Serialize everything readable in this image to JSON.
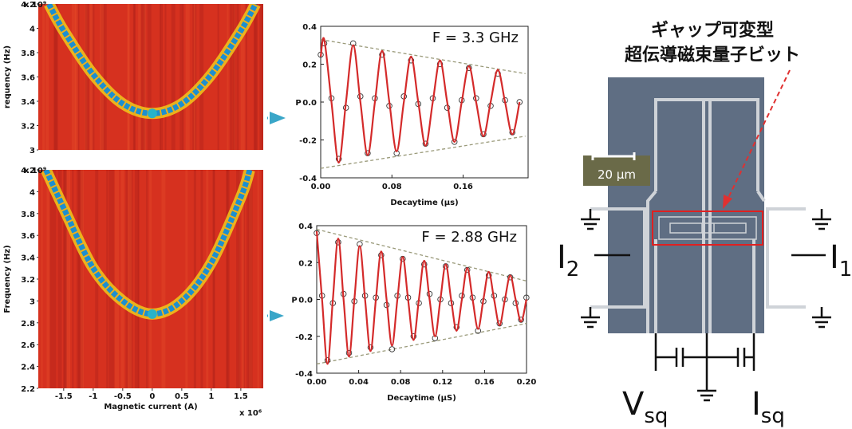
{
  "chart_data": [
    {
      "type": "heatmap",
      "y_label": "requency (Hz)",
      "y_multiplier": "x 10⁹",
      "color": "#d6311f",
      "line_color": "#1c8fd0",
      "glow_color": "#f2d21b",
      "x": [
        -1.75,
        -1.5,
        -1,
        -0.5,
        0,
        0.5,
        1,
        1.5,
        1.75
      ],
      "y": [
        4.2,
        3.98,
        3.62,
        3.38,
        3.3,
        3.38,
        3.62,
        3.98,
        4.2
      ],
      "marker": {
        "x": 0,
        "y": 3.3,
        "color": "#27b3c9"
      },
      "xlim": [
        -1.93,
        1.88
      ],
      "ylim": [
        3,
        4.2
      ],
      "yticks": [
        3,
        3.2,
        3.4,
        3.6,
        3.8,
        4,
        4.2
      ]
    },
    {
      "type": "heatmap",
      "y_label": "Frequency (Hz)",
      "y_multiplier": "x 10⁹",
      "x_label": "Magnetic current (A)",
      "x_multiplier": "x 10⁶",
      "color": "#d6311f",
      "line_color": "#1c8fd0",
      "glow_color": "#f2d21b",
      "x": [
        -1.8,
        -1.5,
        -1,
        -0.5,
        0,
        0.5,
        1,
        1.5,
        1.65
      ],
      "y": [
        4.2,
        3.85,
        3.3,
        3.0,
        2.88,
        3.0,
        3.35,
        3.95,
        4.2
      ],
      "marker": {
        "x": 0,
        "y": 2.88,
        "color": "#27b3c9"
      },
      "xlim": [
        -1.93,
        1.88
      ],
      "ylim": [
        2.2,
        4.2
      ],
      "xticks": [
        -1.5,
        -1,
        -0.5,
        0,
        0.5,
        1,
        1.5
      ],
      "yticks": [
        2.2,
        2.4,
        2.6,
        2.8,
        3,
        3.2,
        3.4,
        3.6,
        3.8,
        4,
        4.2
      ]
    },
    {
      "type": "line",
      "title": "F = 3.3 GHz",
      "x_label": "Decaytime (μs)",
      "y_label": "P",
      "xlim": [
        0,
        0.233
      ],
      "ylim": [
        -0.4,
        0.4
      ],
      "xticks": [
        {
          "value": 0,
          "label": "0.00"
        },
        0.08,
        0.16
      ],
      "yticks": [
        -0.4,
        -0.2,
        {
          "value": 0,
          "label": "0.0"
        },
        0.2,
        0.4
      ],
      "fit": {
        "color": "#d42a2a",
        "x": [
          0,
          0.004,
          0.0121,
          0.0203,
          0.0284,
          0.0365,
          0.0446,
          0.0528,
          0.0609,
          0.069,
          0.0771,
          0.0853,
          0.0934,
          0.1015,
          0.1096,
          0.1178,
          0.1259,
          0.134,
          0.1421,
          0.1503,
          0.1584,
          0.1665,
          0.1746,
          0.1828,
          0.1909,
          0.199,
          0.2071,
          0.2153,
          0.2234
        ],
        "y": [
          0.24,
          0.33,
          0,
          -0.32,
          0,
          0.3,
          0,
          -0.28,
          0,
          0.27,
          0,
          -0.26,
          0,
          0.24,
          0,
          -0.23,
          0,
          0.22,
          0,
          -0.21,
          0,
          0.19,
          0,
          -0.18,
          0,
          0.17,
          0,
          -0.17,
          0
        ]
      },
      "measured": {
        "color": "#333333",
        "x": [
          0,
          0.004,
          0.0121,
          0.0203,
          0.0284,
          0.0365,
          0.0446,
          0.0528,
          0.0609,
          0.069,
          0.0771,
          0.0853,
          0.0934,
          0.1015,
          0.1096,
          0.1178,
          0.1259,
          0.134,
          0.1421,
          0.1503,
          0.1584,
          0.1665,
          0.1746,
          0.1828,
          0.1909,
          0.199,
          0.2071,
          0.2153,
          0.2234
        ],
        "y": [
          0.25,
          0.31,
          0.02,
          -0.3,
          -0.03,
          0.31,
          0.03,
          -0.27,
          0.02,
          0.25,
          -0.02,
          -0.27,
          0.03,
          0.22,
          -0.01,
          -0.22,
          0.02,
          0.2,
          -0.03,
          -0.21,
          0.01,
          0.18,
          0.02,
          -0.17,
          -0.02,
          0.15,
          0.01,
          -0.16,
          0
        ]
      },
      "envelope": [
        {
          "color": "#9a9a7a",
          "x": [
            0,
            0.23
          ],
          "y": [
            0.33,
            0.15
          ]
        },
        {
          "color": "#9a9a7a",
          "x": [
            0,
            0.23
          ],
          "y": [
            -0.35,
            -0.18
          ]
        }
      ]
    },
    {
      "type": "line",
      "title": "F = 2.88 GHz",
      "x_label": "Decaytime (μS)",
      "y_label": "P",
      "xlim": [
        0,
        0.2
      ],
      "ylim": [
        -0.4,
        0.4
      ],
      "xticks": [
        {
          "value": 0,
          "label": "0.00"
        },
        0.04,
        0.08,
        0.12,
        0.16,
        {
          "value": 0.2,
          "label": "0.20"
        }
      ],
      "yticks": [
        -0.4,
        -0.2,
        {
          "value": 0,
          "label": "0.0"
        },
        0.2,
        0.4
      ],
      "fit": {
        "color": "#d42a2a",
        "x": [
          0,
          0.0051,
          0.0103,
          0.0154,
          0.0205,
          0.0256,
          0.0308,
          0.0359,
          0.041,
          0.0461,
          0.0513,
          0.0564,
          0.0615,
          0.0666,
          0.0718,
          0.0769,
          0.082,
          0.0871,
          0.0923,
          0.0974,
          0.1025,
          0.1076,
          0.1128,
          0.1179,
          0.123,
          0.1281,
          0.1333,
          0.1384,
          0.1435,
          0.1486,
          0.1538,
          0.1589,
          0.164,
          0.1691,
          0.1743,
          0.1794,
          0.1845,
          0.1896,
          0.1948,
          0.1999
        ],
        "y": [
          0.37,
          0,
          -0.35,
          0,
          0.33,
          0,
          -0.31,
          0,
          0.29,
          0,
          -0.28,
          0,
          0.26,
          0,
          -0.25,
          0,
          0.23,
          0,
          -0.22,
          0,
          0.21,
          0,
          -0.2,
          0,
          0.19,
          0,
          -0.17,
          0,
          0.17,
          0,
          -0.16,
          0,
          0.15,
          0,
          -0.14,
          0,
          0.13,
          0,
          -0.12,
          0
        ]
      },
      "measured": {
        "color": "#333333",
        "x": [
          0,
          0.0051,
          0.0103,
          0.0154,
          0.0205,
          0.0256,
          0.0308,
          0.0359,
          0.041,
          0.0461,
          0.0513,
          0.0564,
          0.0615,
          0.0666,
          0.0718,
          0.0769,
          0.082,
          0.0871,
          0.0923,
          0.0974,
          0.1025,
          0.1076,
          0.1128,
          0.1179,
          0.123,
          0.1281,
          0.1333,
          0.1384,
          0.1435,
          0.1486,
          0.1538,
          0.1589,
          0.164,
          0.1691,
          0.1743,
          0.1794,
          0.1845,
          0.1896,
          0.1948,
          0.1999
        ],
        "y": [
          0.36,
          0.02,
          -0.33,
          -0.02,
          0.31,
          0.03,
          -0.29,
          -0.01,
          0.3,
          0.02,
          -0.26,
          0.01,
          0.24,
          -0.03,
          -0.27,
          0.02,
          0.22,
          0.01,
          -0.2,
          -0.02,
          0.19,
          0.03,
          -0.21,
          0,
          0.18,
          -0.02,
          -0.15,
          0.02,
          0.16,
          0.01,
          -0.17,
          -0.01,
          0.13,
          0.02,
          -0.13,
          0,
          0.12,
          -0.02,
          -0.11,
          0.01
        ]
      },
      "envelope": [
        {
          "color": "#9a9a7a",
          "x": [
            0,
            0.2
          ],
          "y": [
            0.38,
            0.1
          ]
        },
        {
          "color": "#9a9a7a",
          "x": [
            0,
            0.2
          ],
          "y": [
            -0.35,
            -0.13
          ]
        }
      ]
    }
  ],
  "diagram": {
    "title_lines": [
      "ギャップ可変型",
      "超伝導磁束量子ビット"
    ],
    "scale_bar": "20 μm",
    "labels": [
      {
        "main": "I",
        "sub": "2"
      },
      {
        "main": "I",
        "sub": "1"
      },
      {
        "main": "V",
        "sub": "sq"
      },
      {
        "main": "I",
        "sub": "sq"
      }
    ]
  }
}
